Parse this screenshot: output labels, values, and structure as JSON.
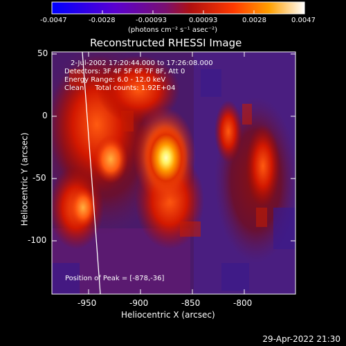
{
  "colorbar": {
    "ticks": [
      "-0.0047",
      "-0.0028",
      "-0.00093",
      "0.00093",
      "0.0028",
      "0.0047"
    ],
    "units": "(photons cm⁻² s⁻¹ asec⁻²)"
  },
  "title": "Reconstructed RHESSI Image",
  "info": {
    "time_range": "2-Jul-2002 17:20:44.000 to 17:26:08.000",
    "detectors": "Detectors: 3F 4F 5F 6F 7F 8F, Att 0",
    "energy": "Energy Range: 6.0 - 12.0 keV",
    "clean": "Clean     Total counts: 1.92E+04"
  },
  "axes": {
    "xlabel": "Heliocentric X (arcsec)",
    "ylabel": "Heliocentric Y (arcsec)",
    "xticks": [
      "-950",
      "-900",
      "-850",
      "-800"
    ],
    "yticks": [
      "50",
      "0",
      "-50",
      "-100"
    ]
  },
  "peak_label": "Position of Peak = [-878,-36]",
  "timestamp": "29-Apr-2022 21:30",
  "colors": {
    "background": "#000000",
    "text": "#ffffff",
    "limb": "#ffffff"
  }
}
